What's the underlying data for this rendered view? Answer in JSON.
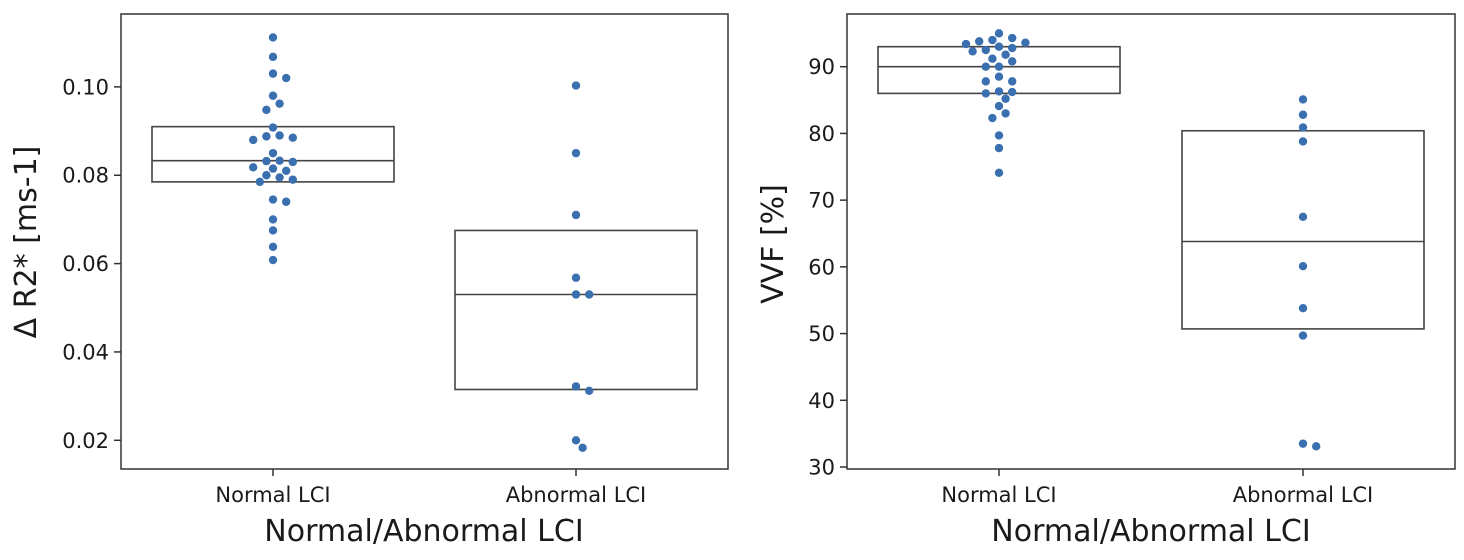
{
  "chart_data": [
    {
      "type": "box-swarm",
      "xlabel": "Normal/Abnormal LCI",
      "ylabel": "Δ R2* [ms-1]",
      "ylim": [
        0.0135,
        0.1165
      ],
      "yticks": [
        0.02,
        0.04,
        0.06,
        0.08,
        0.1
      ],
      "ytick_labels": [
        "0.02",
        "0.04",
        "0.06",
        "0.08",
        "0.10"
      ],
      "categories": [
        "Normal LCI",
        "Abnormal LCI"
      ],
      "boxes": [
        {
          "category": "Normal LCI",
          "q1": 0.0785,
          "median": 0.0833,
          "q3": 0.091
        },
        {
          "category": "Abnormal LCI",
          "q1": 0.0315,
          "median": 0.053,
          "q3": 0.0675
        }
      ],
      "points": [
        {
          "category": "Normal LCI",
          "values": [
            0.1112,
            0.1068,
            0.103,
            0.102,
            0.098,
            0.0962,
            0.0948,
            0.0908,
            0.089,
            0.0888,
            0.0885,
            0.088,
            0.085,
            0.0833,
            0.0832,
            0.083,
            0.0818,
            0.0815,
            0.081,
            0.08,
            0.0795,
            0.079,
            0.0785,
            0.0745,
            0.074,
            0.07,
            0.0675,
            0.0638,
            0.0608
          ]
        },
        {
          "category": "Abnormal LCI",
          "values": [
            0.1003,
            0.085,
            0.071,
            0.0568,
            0.053,
            0.053,
            0.0322,
            0.0312,
            0.02,
            0.0183
          ]
        }
      ]
    },
    {
      "type": "box-swarm",
      "xlabel": "Normal/Abnormal LCI",
      "ylabel": "VVF [%]",
      "ylim": [
        29.7,
        97.9
      ],
      "yticks": [
        30,
        40,
        50,
        60,
        70,
        80,
        90
      ],
      "ytick_labels": [
        "30",
        "40",
        "50",
        "60",
        "70",
        "80",
        "90"
      ],
      "categories": [
        "Normal LCI",
        "Abnormal LCI"
      ],
      "boxes": [
        {
          "category": "Normal LCI",
          "q1": 86.0,
          "median": 90.0,
          "q3": 93.0
        },
        {
          "category": "Abnormal LCI",
          "q1": 50.7,
          "median": 63.8,
          "q3": 80.4
        }
      ],
      "points": [
        {
          "category": "Normal LCI",
          "values": [
            95.0,
            94.3,
            94.0,
            93.8,
            93.6,
            93.4,
            93.0,
            92.8,
            92.5,
            92.3,
            91.8,
            91.2,
            90.8,
            90.0,
            90.0,
            88.5,
            87.8,
            87.8,
            86.3,
            86.2,
            86.0,
            85.2,
            84.1,
            83.0,
            82.3,
            79.7,
            77.8,
            74.1
          ]
        },
        {
          "category": "Abnormal LCI",
          "values": [
            85.1,
            82.8,
            80.9,
            78.8,
            67.5,
            60.1,
            53.8,
            49.7,
            33.5,
            33.1
          ]
        }
      ]
    }
  ]
}
